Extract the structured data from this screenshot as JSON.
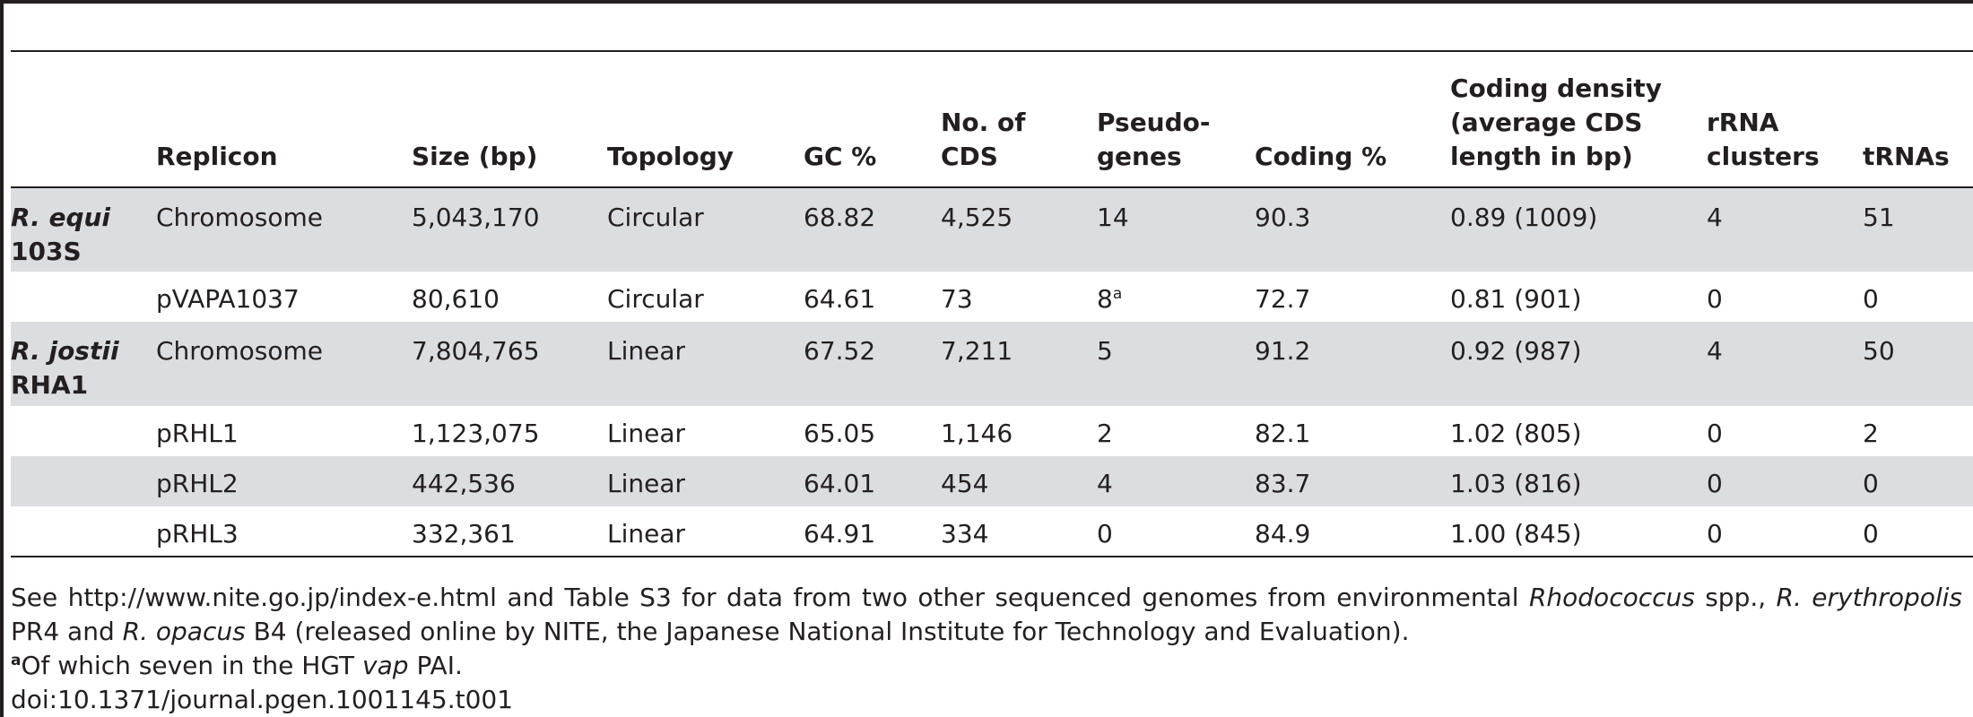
{
  "table": {
    "headers": [
      "",
      "Replicon",
      "Size (bp)",
      "Topology",
      "GC %",
      "No. of CDS",
      "Pseudo-genes",
      "Coding %",
      "Coding density (average CDS length in bp)",
      "rRNA clusters",
      "tRNAs"
    ],
    "rows": [
      {
        "organism_genus": "R. equi",
        "organism_strain": "103S",
        "replicon": "Chromosome",
        "size": "5,043,170",
        "topology": "Circular",
        "gc": "68.82",
        "cds": "4,525",
        "pseudogenes": "14",
        "pseudogenes_note": "",
        "coding": "90.3",
        "density": "0.89 (1009)",
        "rrna": "4",
        "trna": "51"
      },
      {
        "organism_genus": "",
        "organism_strain": "",
        "replicon": "pVAPA1037",
        "size": "80,610",
        "topology": "Circular",
        "gc": "64.61",
        "cds": "73",
        "pseudogenes": "8",
        "pseudogenes_note": "a",
        "coding": "72.7",
        "density": "0.81 (901)",
        "rrna": "0",
        "trna": "0"
      },
      {
        "organism_genus": "R. jostii",
        "organism_strain": "RHA1",
        "replicon": "Chromosome",
        "size": "7,804,765",
        "topology": "Linear",
        "gc": "67.52",
        "cds": "7,211",
        "pseudogenes": "5",
        "pseudogenes_note": "",
        "coding": "91.2",
        "density": "0.92 (987)",
        "rrna": "4",
        "trna": "50"
      },
      {
        "organism_genus": "",
        "organism_strain": "",
        "replicon": "pRHL1",
        "size": "1,123,075",
        "topology": "Linear",
        "gc": "65.05",
        "cds": "1,146",
        "pseudogenes": "2",
        "pseudogenes_note": "",
        "coding": "82.1",
        "density": "1.02 (805)",
        "rrna": "0",
        "trna": "2"
      },
      {
        "organism_genus": "",
        "organism_strain": "",
        "replicon": "pRHL2",
        "size": "442,536",
        "topology": "Linear",
        "gc": "64.01",
        "cds": "454",
        "pseudogenes": "4",
        "pseudogenes_note": "",
        "coding": "83.7",
        "density": "1.03 (816)",
        "rrna": "0",
        "trna": "0"
      },
      {
        "organism_genus": "",
        "organism_strain": "",
        "replicon": "pRHL3",
        "size": "332,361",
        "topology": "Linear",
        "gc": "64.91",
        "cds": "334",
        "pseudogenes": "0",
        "pseudogenes_note": "",
        "coding": "84.9",
        "density": "1.00 (845)",
        "rrna": "0",
        "trna": "0"
      }
    ]
  },
  "footnotes": {
    "note_parts": [
      "See http://www.nite.go.jp/index-e.html and Table S3 for data from two other sequenced genomes from environmental ",
      "Rhodococcus",
      " spp., ",
      "R. erythropolis",
      " PR4 and ",
      "R. opacus",
      " B4 (released online by NITE, the Japanese National Institute for Technology and Evaluation)."
    ],
    "footnote_a_marker": "a",
    "footnote_a_parts": [
      "Of which seven in the HGT ",
      "vap",
      " PAI."
    ],
    "doi": "doi:10.1371/journal.pgen.1001145.t001"
  }
}
